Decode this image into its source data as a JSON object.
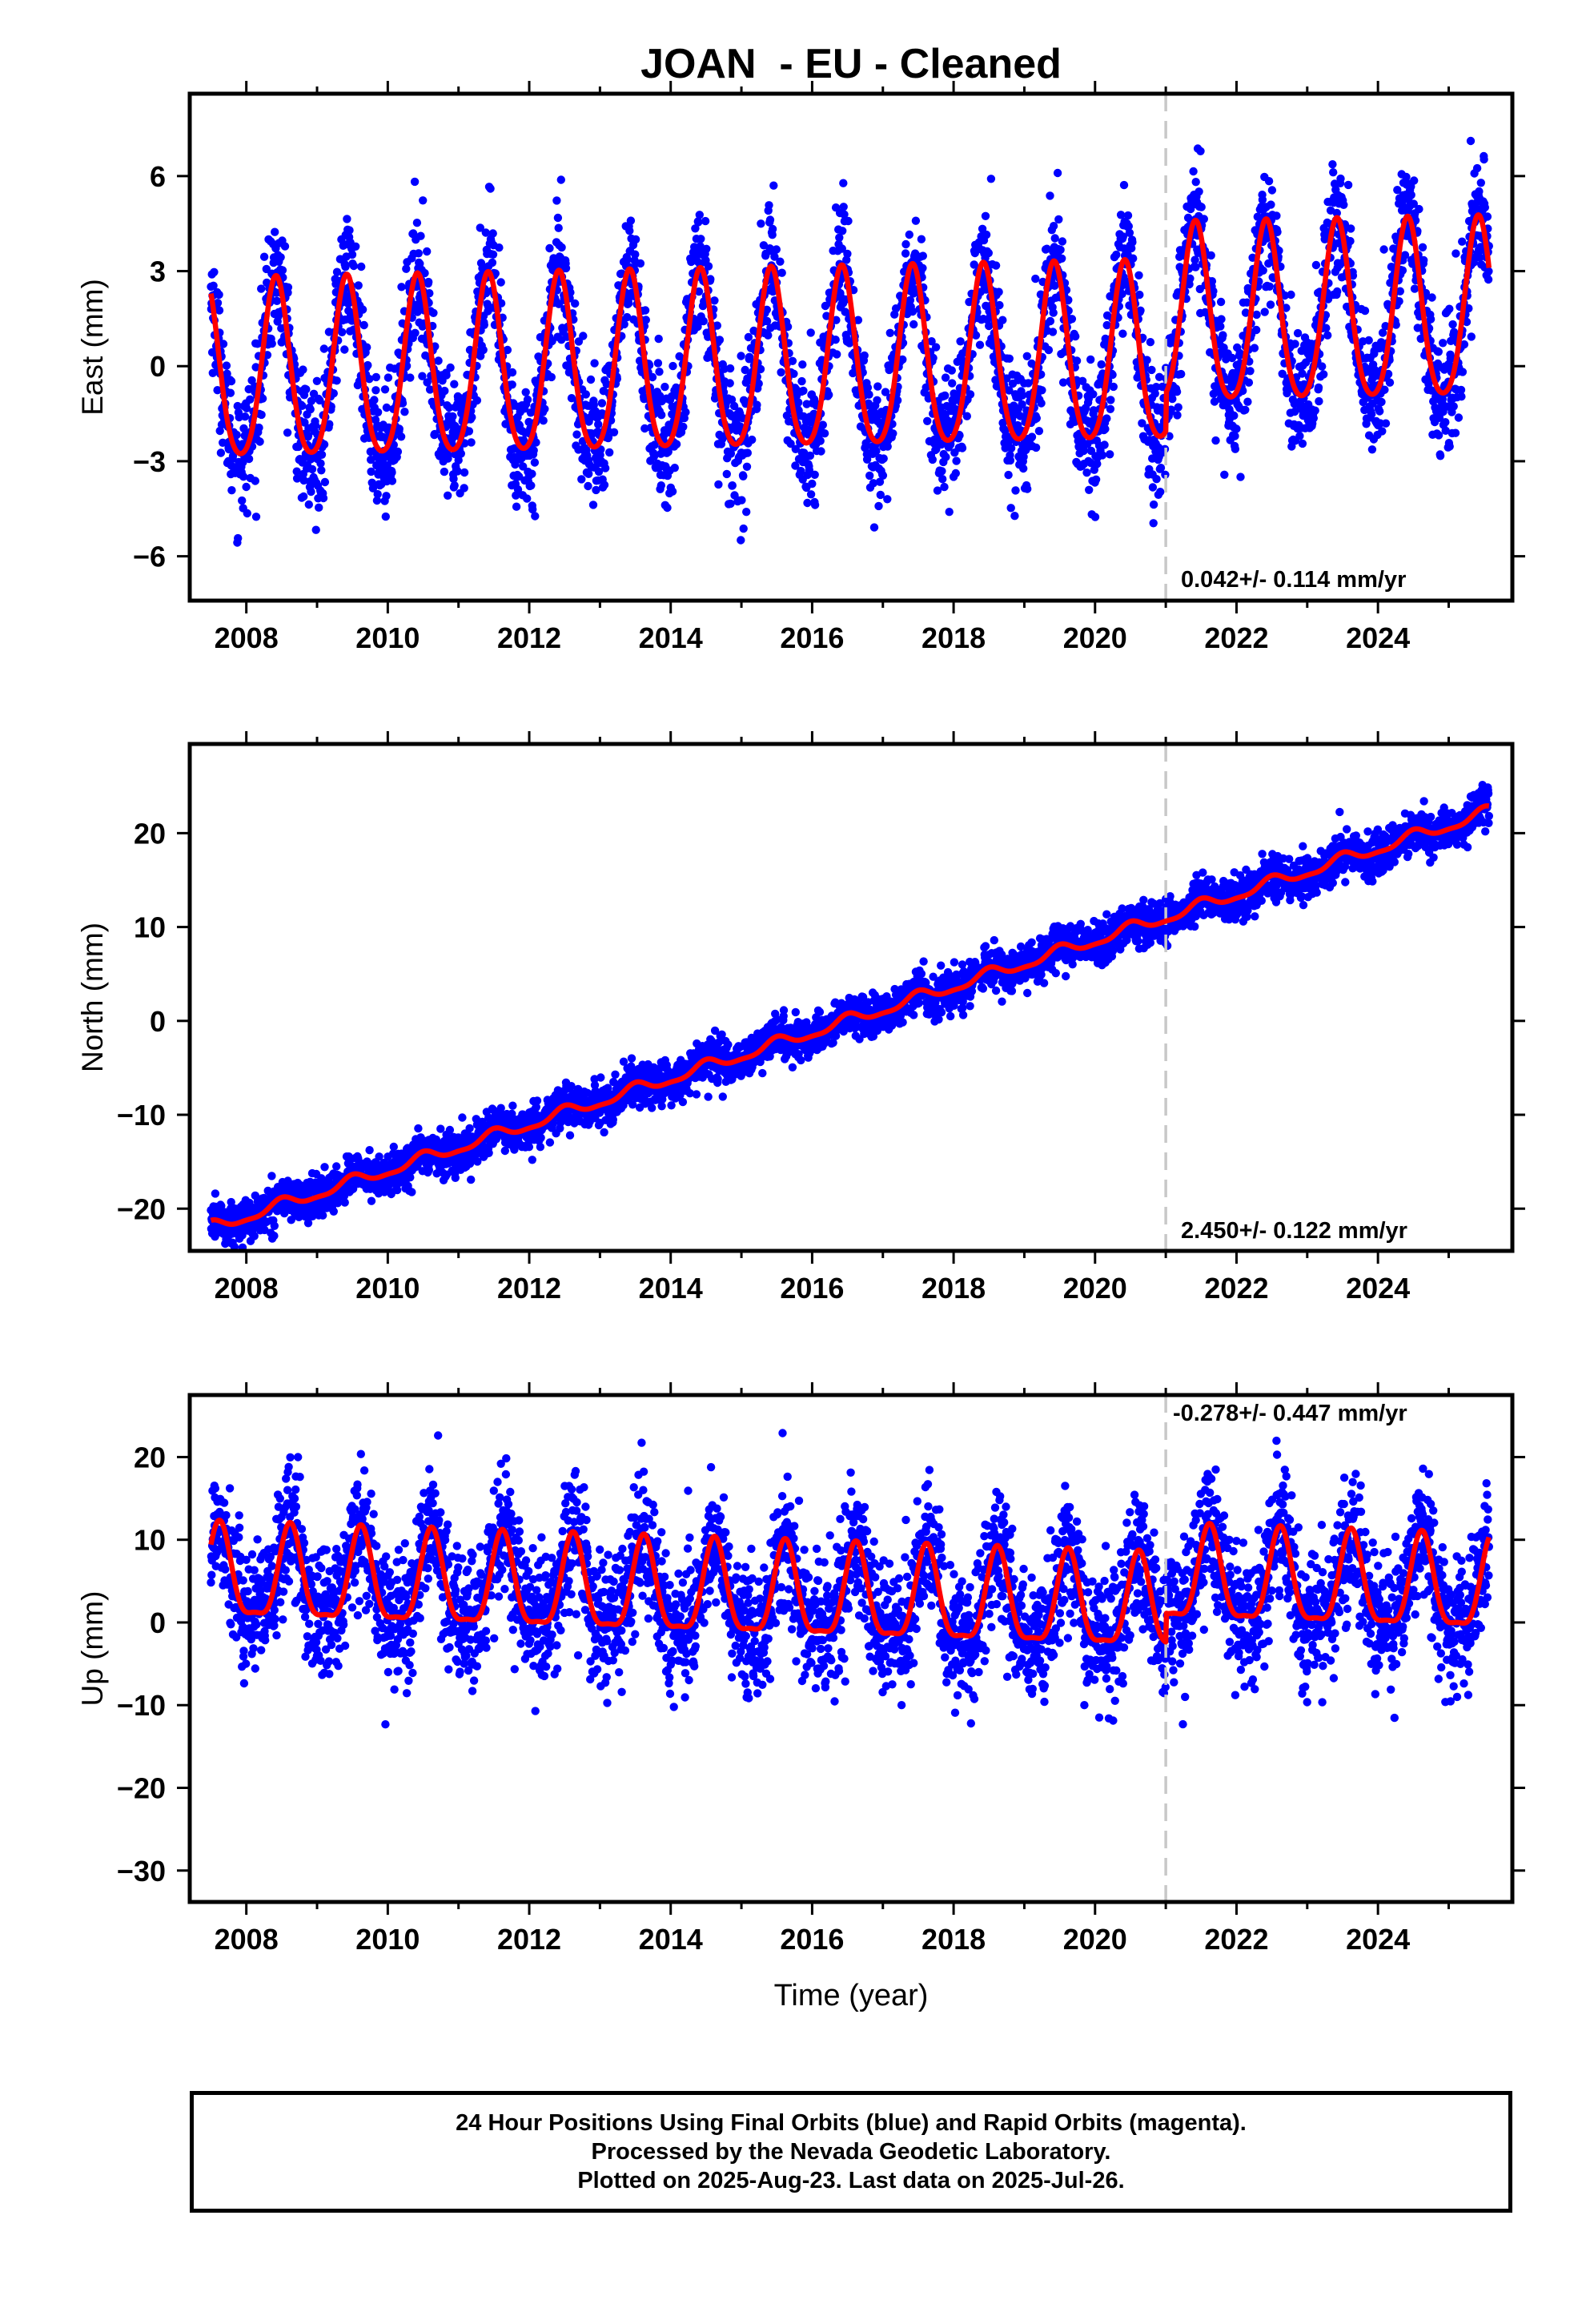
{
  "title": "JOAN  - EU - Cleaned",
  "x_axis_label": "Time (year)",
  "footer": {
    "line1": "24 Hour Positions Using Final Orbits (blue) and Rapid Orbits (magenta).",
    "line2": "Processed by the Nevada Geodetic Laboratory.",
    "line3": "Plotted on 2025-Aug-23. Last data on 2025-Jul-26."
  },
  "colors": {
    "data_points": "#0000ff",
    "model_fit": "#ff0000",
    "discontinuity": "#c8c8c8"
  },
  "chart_data": [
    {
      "type": "scatter",
      "component": "East",
      "ylabel": "East (mm)",
      "xlim": [
        2007.2,
        2025.9
      ],
      "ylim": [
        -7.4,
        8.6
      ],
      "xticks": [
        2008,
        2010,
        2012,
        2014,
        2016,
        2018,
        2020,
        2022,
        2024
      ],
      "yticks": [
        -6,
        -3,
        0,
        3,
        6
      ],
      "discontinuity_x": 2021.0,
      "rate_text": "0.042+/- 0.114 mm/yr",
      "model": {
        "trend_mm_per_yr": 0.042,
        "offset_mm": 0.0,
        "annual_amplitude_mm": 2.8,
        "annual_peak_month_fraction": 0.42,
        "semiannual_amplitude_mm": 0.4,
        "offset_after_discontinuity_mm": 1.2
      },
      "scatter_sigma_mm": 1.0,
      "samples": [
        [
          2007.5,
          1.8
        ],
        [
          2008.0,
          -3.0
        ],
        [
          2008.45,
          2.6
        ],
        [
          2009.0,
          -3.2
        ],
        [
          2009.45,
          2.7
        ],
        [
          2010.0,
          -3.1
        ],
        [
          2010.45,
          2.6
        ],
        [
          2011.0,
          -3.1
        ],
        [
          2011.45,
          2.7
        ],
        [
          2012.0,
          -3.0
        ],
        [
          2012.45,
          2.7
        ],
        [
          2013.0,
          -3.0
        ],
        [
          2013.45,
          2.8
        ],
        [
          2014.0,
          -2.9
        ],
        [
          2014.45,
          2.8
        ],
        [
          2015.0,
          -2.9
        ],
        [
          2015.45,
          2.8
        ],
        [
          2016.0,
          -2.9
        ],
        [
          2016.45,
          2.8
        ],
        [
          2017.0,
          -2.8
        ],
        [
          2017.45,
          2.9
        ],
        [
          2018.0,
          -2.8
        ],
        [
          2018.45,
          2.9
        ],
        [
          2019.0,
          -2.7
        ],
        [
          2019.45,
          3.0
        ],
        [
          2020.0,
          -2.7
        ],
        [
          2020.45,
          3.0
        ],
        [
          2021.0,
          -2.6
        ],
        [
          2021.45,
          4.1
        ],
        [
          2022.0,
          -1.6
        ],
        [
          2022.45,
          4.1
        ],
        [
          2023.0,
          -1.5
        ],
        [
          2023.45,
          4.2
        ],
        [
          2024.0,
          -1.5
        ],
        [
          2024.45,
          4.2
        ],
        [
          2025.0,
          -1.4
        ],
        [
          2025.5,
          4.2
        ]
      ]
    },
    {
      "type": "scatter",
      "component": "North",
      "ylabel": "North (mm)",
      "xlim": [
        2007.2,
        2025.9
      ],
      "ylim": [
        -24.5,
        29.5
      ],
      "xticks": [
        2008,
        2010,
        2012,
        2014,
        2016,
        2018,
        2020,
        2022,
        2024
      ],
      "yticks": [
        -20,
        -10,
        0,
        10,
        20
      ],
      "discontinuity_x": 2021.0,
      "rate_text": "2.450+/- 0.122 mm/yr",
      "model": {
        "trend_mm_per_yr": 2.45,
        "offset_mm": 0.0,
        "annual_amplitude_mm": 0.6,
        "annual_peak_month_fraction": 0.5,
        "semiannual_amplitude_mm": 0.2,
        "offset_after_discontinuity_mm": 0.0
      },
      "scatter_sigma_mm": 1.1,
      "samples": [
        [
          2007.5,
          -19.5
        ],
        [
          2008.0,
          -18.7
        ],
        [
          2009.0,
          -16.8
        ],
        [
          2010.0,
          -14.5
        ],
        [
          2011.0,
          -12.0
        ],
        [
          2012.0,
          -9.5
        ],
        [
          2013.0,
          -7.0
        ],
        [
          2014.0,
          -4.8
        ],
        [
          2015.0,
          -2.4
        ],
        [
          2016.0,
          0.0
        ],
        [
          2017.0,
          2.6
        ],
        [
          2018.0,
          5.0
        ],
        [
          2019.0,
          7.5
        ],
        [
          2020.0,
          10.0
        ],
        [
          2021.0,
          12.5
        ],
        [
          2022.0,
          15.0
        ],
        [
          2023.0,
          17.5
        ],
        [
          2024.0,
          20.0
        ],
        [
          2025.0,
          22.5
        ],
        [
          2025.5,
          24.3
        ]
      ]
    },
    {
      "type": "scatter",
      "component": "Up",
      "ylabel": "Up (mm)",
      "xlim": [
        2007.2,
        2025.9
      ],
      "ylim": [
        -33.8,
        27.5
      ],
      "xticks": [
        2008,
        2010,
        2012,
        2014,
        2016,
        2018,
        2020,
        2022,
        2024
      ],
      "yticks": [
        -30,
        -20,
        -10,
        0,
        10,
        20
      ],
      "discontinuity_x": 2021.0,
      "rate_text": "-0.278+/- 0.447 mm/yr",
      "model": {
        "trend_mm_per_yr": -0.278,
        "offset_mm": 2.8,
        "annual_amplitude_mm": 5.5,
        "annual_peak_month_fraction": 0.62,
        "semiannual_amplitude_mm": 1.6,
        "offset_after_discontinuity_mm": 3.5
      },
      "scatter_sigma_mm": 4.0,
      "samples": [
        [
          2007.5,
          9.0
        ],
        [
          2008.1,
          -2.5
        ],
        [
          2008.62,
          9.2
        ],
        [
          2009.1,
          -3.5
        ],
        [
          2009.62,
          8.8
        ],
        [
          2010.1,
          -3.5
        ],
        [
          2010.62,
          8.7
        ],
        [
          2011.1,
          -3.8
        ],
        [
          2011.62,
          8.5
        ],
        [
          2012.1,
          -4.0
        ],
        [
          2012.62,
          8.3
        ],
        [
          2013.1,
          -4.2
        ],
        [
          2013.62,
          8.0
        ],
        [
          2014.1,
          -4.5
        ],
        [
          2014.62,
          7.7
        ],
        [
          2015.1,
          -5.0
        ],
        [
          2015.62,
          7.4
        ],
        [
          2016.1,
          -5.0
        ],
        [
          2016.62,
          7.0
        ],
        [
          2017.1,
          -5.2
        ],
        [
          2017.62,
          6.8
        ],
        [
          2018.1,
          -5.5
        ],
        [
          2018.62,
          6.5
        ],
        [
          2019.1,
          -5.8
        ],
        [
          2019.62,
          6.2
        ],
        [
          2020.1,
          -6.0
        ],
        [
          2020.62,
          5.9
        ],
        [
          2021.0,
          -6.5
        ],
        [
          2021.62,
          8.8
        ],
        [
          2022.1,
          -3.5
        ],
        [
          2022.62,
          8.7
        ],
        [
          2023.1,
          -3.8
        ],
        [
          2023.62,
          8.5
        ],
        [
          2024.1,
          -4.0
        ],
        [
          2024.62,
          8.3
        ],
        [
          2025.1,
          -4.3
        ],
        [
          2025.5,
          7.5
        ]
      ]
    }
  ]
}
